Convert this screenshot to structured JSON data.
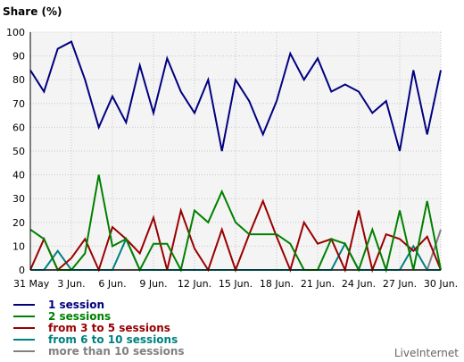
{
  "chart_data": {
    "type": "line",
    "ylabel": "Share (%)",
    "ylim": [
      0,
      100
    ],
    "yticks": [
      "0",
      "10",
      "20",
      "30",
      "40",
      "50",
      "60",
      "70",
      "80",
      "90",
      "100"
    ],
    "x_labels": [
      "31 May",
      "3 Jun.",
      "6 Jun.",
      "9 Jun.",
      "12 Jun.",
      "15 Jun.",
      "18 Jun.",
      "21 Jun.",
      "24 Jun.",
      "27 Jun.",
      "30 Jun."
    ],
    "grid": true,
    "legend_position": "bottom-left",
    "series": [
      {
        "name": "1 session",
        "color": "#000080",
        "values": [
          84,
          75,
          93,
          96,
          80,
          60,
          73,
          62,
          86,
          66,
          89,
          75,
          66,
          80,
          50,
          80,
          71,
          57,
          71,
          91,
          80,
          89,
          75,
          78,
          75,
          66,
          71,
          50,
          84,
          57,
          84
        ]
      },
      {
        "name": "2 sessions",
        "color": "#008000",
        "values": [
          17,
          13,
          0,
          0,
          7,
          40,
          10,
          13,
          0,
          11,
          11,
          0,
          25,
          20,
          33,
          20,
          15,
          15,
          15,
          11,
          0,
          0,
          13,
          11,
          0,
          17,
          0,
          25,
          0,
          29,
          0
        ]
      },
      {
        "name": "from 3 to 5 sessions",
        "color": "#990000",
        "values": [
          0,
          13,
          0,
          5,
          13,
          0,
          18,
          13,
          7,
          22,
          0,
          25,
          9,
          0,
          17,
          0,
          15,
          29,
          14,
          0,
          20,
          11,
          13,
          0,
          25,
          0,
          15,
          13,
          8,
          14,
          0
        ]
      },
      {
        "name": "from 6 to 10 sessions",
        "color": "#008080",
        "values": [
          0,
          0,
          8,
          0,
          0,
          0,
          0,
          13,
          0,
          0,
          0,
          0,
          0,
          0,
          0,
          0,
          0,
          0,
          0,
          0,
          0,
          0,
          0,
          11,
          0,
          0,
          0,
          0,
          10,
          0,
          0
        ]
      },
      {
        "name": "more than 10 sessions",
        "color": "#808080",
        "values": [
          0,
          0,
          0,
          0,
          0,
          0,
          0,
          0,
          0,
          0,
          0,
          0,
          0,
          0,
          0,
          0,
          0,
          0,
          0,
          0,
          0,
          0,
          0,
          0,
          0,
          0,
          0,
          0,
          0,
          0,
          17
        ]
      }
    ]
  },
  "brand": "LiveInternet"
}
